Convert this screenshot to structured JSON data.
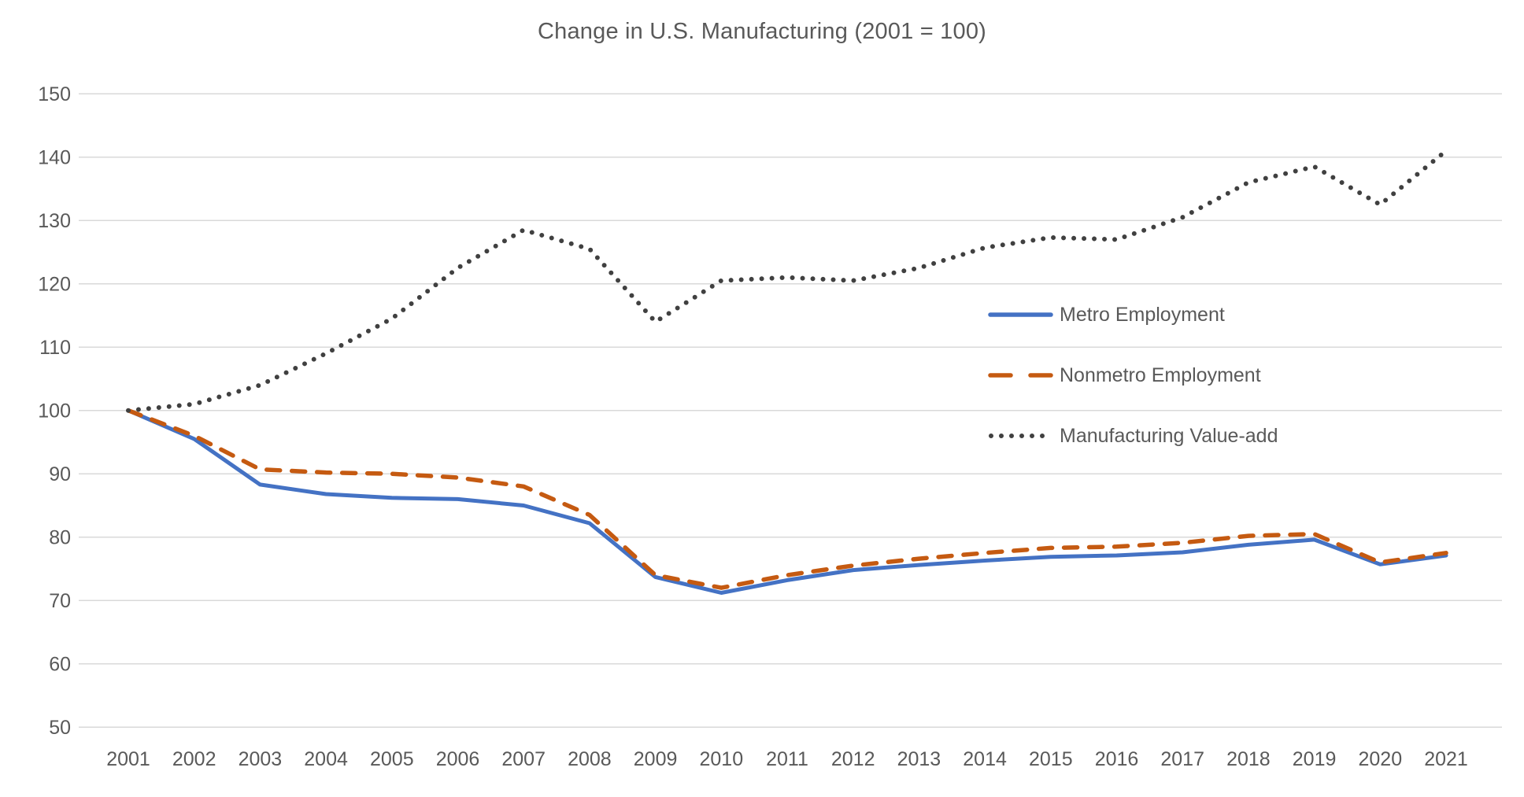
{
  "title": "Change in U.S. Manufacturing (2001 = 100)",
  "colors": {
    "metro_line": "#4472C4",
    "nonmetro_line": "#C55A11",
    "valueadd_line": "#404040",
    "gridline": "#D9D9D9",
    "text": "#595959",
    "background": "#FFFFFF"
  },
  "chart_data": {
    "type": "line",
    "title": "Change in U.S. Manufacturing (2001 = 100)",
    "xlabel": "",
    "ylabel": "",
    "ylim": [
      50,
      150
    ],
    "grid": true,
    "legend_position": "middle-right",
    "x_tick_labels": [
      "2001",
      "2002",
      "2003",
      "2004",
      "2005",
      "2006",
      "2007",
      "2008",
      "2009",
      "2010",
      "2011",
      "2012",
      "2013",
      "2014",
      "2015",
      "2016",
      "2017",
      "2018",
      "2019",
      "2020",
      "2021"
    ],
    "y_tick_labels": [
      "150",
      "140",
      "130",
      "120",
      "110",
      "100",
      "90",
      "80",
      "70",
      "60",
      "50"
    ],
    "x": [
      2001,
      2002,
      2003,
      2004,
      2005,
      2006,
      2007,
      2008,
      2009,
      2010,
      2011,
      2012,
      2013,
      2014,
      2015,
      2016,
      2017,
      2018,
      2019,
      2020,
      2021
    ],
    "series": [
      {
        "name": "Metro Employment",
        "style": "solid",
        "color": "#4472C4",
        "values": [
          100,
          95.5,
          88.3,
          86.8,
          86.2,
          86,
          85,
          82.2,
          73.7,
          71.2,
          73.2,
          74.8,
          75.6,
          76.3,
          76.9,
          77.1,
          77.6,
          78.8,
          79.6,
          75.7,
          77.1
        ]
      },
      {
        "name": "Nonmetro Employment",
        "style": "dashed",
        "color": "#C55A11",
        "values": [
          100,
          96,
          90.7,
          90.2,
          90,
          89.4,
          88,
          83.5,
          74,
          72,
          74,
          75.5,
          76.6,
          77.5,
          78.3,
          78.5,
          79.1,
          80.2,
          80.5,
          76,
          77.5
        ]
      },
      {
        "name": "Manufacturing Value-add",
        "style": "dotted",
        "color": "#404040",
        "values": [
          100,
          101,
          104,
          109,
          114.5,
          122.5,
          128.5,
          125.5,
          114,
          120.5,
          121,
          120.5,
          122.5,
          125.7,
          127.3,
          127,
          130.5,
          136,
          138.5,
          132.5,
          141
        ]
      }
    ]
  }
}
